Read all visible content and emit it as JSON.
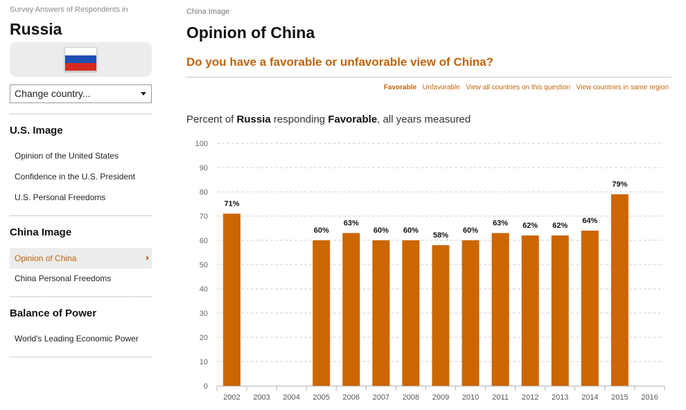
{
  "sidebar": {
    "caption": "Survey Answers of Respondents in",
    "country": "Russia",
    "flag_icon": "russia-flag-icon",
    "country_select": {
      "label": "Change country..."
    },
    "sections": [
      {
        "title": "U.S. Image",
        "items": [
          "Opinion of the United States",
          "Confidence in the U.S. President",
          "U.S. Personal Freedoms"
        ]
      },
      {
        "title": "China Image",
        "items": [
          "Opinion of China",
          "China Personal Freedoms"
        ]
      },
      {
        "title": "Balance of Power",
        "items": [
          "World's Leading Economic Power"
        ]
      }
    ],
    "active_item": "Opinion of China",
    "active_icon": "double-chevron-right-icon",
    "accent_color": "#c0630b"
  },
  "main": {
    "breadcrumb": "China Image",
    "title": "Opinion of China",
    "question": "Do you have a favorable or unfavorable view of China?",
    "filters": [
      "Favorable",
      "Unfavorable",
      "View all countries on this question",
      "View countries in same region"
    ],
    "active_filter": "Favorable",
    "caption": {
      "prefix": "Percent of ",
      "country": "Russia",
      "middle": " responding ",
      "response": "Favorable",
      "suffix": ", all years measured"
    }
  },
  "chart_data": {
    "type": "bar",
    "categories": [
      "2002",
      "2003",
      "2004",
      "2005",
      "2006",
      "2007",
      "2008",
      "2009",
      "2010",
      "2011",
      "2012",
      "2013",
      "2014",
      "2015",
      "2016"
    ],
    "values": [
      71,
      null,
      null,
      60,
      63,
      60,
      60,
      58,
      60,
      63,
      62,
      62,
      64,
      79,
      null
    ],
    "value_labels": [
      "71%",
      "",
      "",
      "60%",
      "63%",
      "60%",
      "60%",
      "58%",
      "60%",
      "63%",
      "62%",
      "62%",
      "64%",
      "79%",
      ""
    ],
    "y_ticks": [
      "0",
      "10",
      "20",
      "30",
      "40",
      "50",
      "60",
      "70",
      "80",
      "90",
      "100"
    ],
    "ylim": [
      0,
      100
    ],
    "bar_color": "#cc6600",
    "grid": true
  }
}
